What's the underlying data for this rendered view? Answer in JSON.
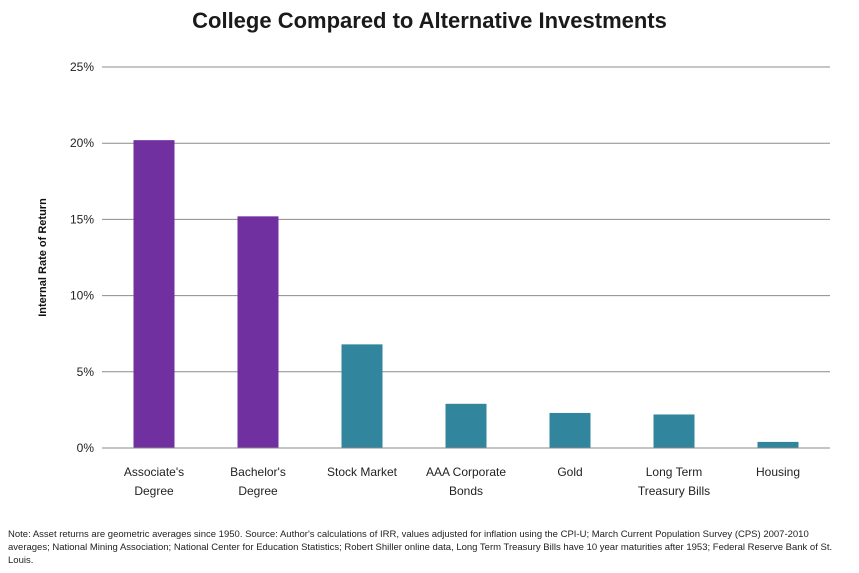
{
  "chart_data": {
    "type": "bar",
    "title": "College Compared to Alternative Investments",
    "ylabel": "Internal Rate of Return",
    "xlabel": "",
    "categories": [
      [
        "Associate's",
        "Degree"
      ],
      [
        "Bachelor's",
        "Degree"
      ],
      [
        "Stock Market"
      ],
      [
        "AAA Corporate",
        "Bonds"
      ],
      [
        "Gold"
      ],
      [
        "Long Term",
        "Treasury Bills"
      ],
      [
        "Housing"
      ]
    ],
    "values": [
      20.2,
      15.2,
      6.8,
      2.9,
      2.3,
      2.2,
      0.4
    ],
    "bar_colors": [
      "#7030a0",
      "#7030a0",
      "#31859c",
      "#31859c",
      "#31859c",
      "#31859c",
      "#31859c"
    ],
    "ylim": [
      0,
      25
    ],
    "yticks": [
      "0%",
      "5%",
      "10%",
      "15%",
      "20%",
      "25%"
    ],
    "ytick_values": [
      0,
      5,
      10,
      15,
      20,
      25
    ],
    "grid": true,
    "legend": "none"
  },
  "note": "Note: Asset returns are geometric averages since 1950. Source: Author's calculations of IRR, values adjusted for inflation using the CPI-U; March Current Population Survey (CPS) 2007-2010 averages; National Mining Association; National Center for Education Statistics; Robert Shiller online data, Long Term Treasury Bills have 10 year maturities after 1953; Federal Reserve Bank of St. Louis."
}
